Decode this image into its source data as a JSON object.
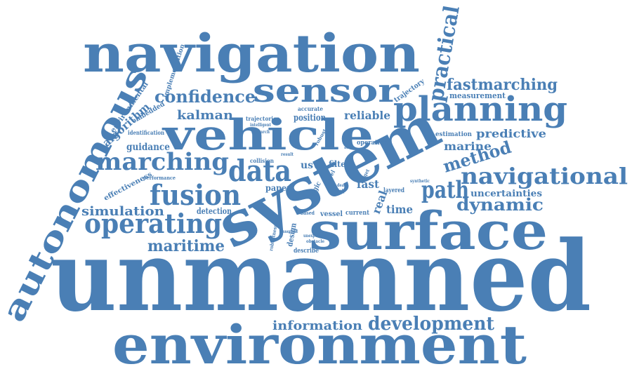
{
  "word_cloud": {
    "color": "#4a7fb5",
    "background": "#ffffff",
    "words": [
      "unmanned",
      "environment",
      "system",
      "surface",
      "navigation",
      "vehicle",
      "autonomous",
      "sensor",
      "planning",
      "fusion",
      "operating",
      "data",
      "path",
      "navigational",
      "marching",
      "practical",
      "confidence",
      "development",
      "fastmarching",
      "method",
      "maritime",
      "dynamic",
      "simulation",
      "kalman",
      "information",
      "predictive",
      "marine",
      "reliable",
      "algorithm",
      "guidance",
      "uncertainties",
      "time",
      "environmental",
      "implementation",
      "measurement",
      "estimation",
      "trajectory",
      "position",
      "accurate",
      "trajectories",
      "embedded",
      "identification",
      "effectiveness",
      "performance",
      "detection",
      "usvs",
      "collision",
      "filter",
      "fast",
      "real",
      "paper",
      "operation",
      "layered",
      "vessel",
      "current",
      "based",
      "design",
      "describe",
      "robustness",
      "unexpected",
      "obstacle",
      "intelligent",
      "research",
      "synthetic",
      "logic",
      "square",
      "robust",
      "level",
      "target",
      "essential",
      "novel",
      "result",
      "deal",
      "help"
    ]
  }
}
